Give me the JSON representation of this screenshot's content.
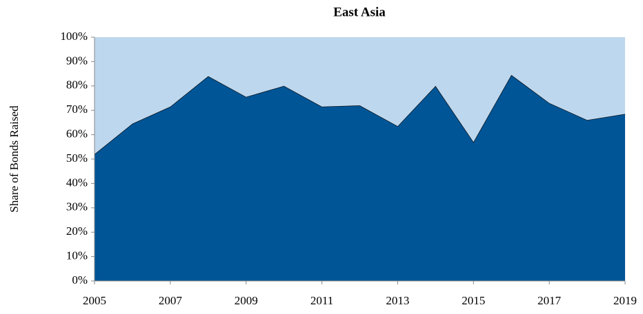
{
  "chart_data": {
    "type": "stacked_area",
    "title": "East Asia",
    "y_label": "Share of Bonds Raised",
    "x": [
      2005,
      2006,
      2007,
      2008,
      2009,
      2010,
      2011,
      2012,
      2013,
      2014,
      2015,
      2016,
      2017,
      2018,
      2019
    ],
    "series": [
      {
        "color": "#005596",
        "values": [
          52,
          64.5,
          71.5,
          84,
          75.5,
          80,
          71.5,
          72,
          63.5,
          80,
          57,
          84.5,
          73,
          66,
          68.5
        ]
      },
      {
        "color": "#bdd7ee",
        "values": [
          48,
          35.5,
          28.5,
          16,
          24.5,
          20,
          28.5,
          28,
          36.5,
          20,
          43,
          15.5,
          27,
          34,
          31.5
        ]
      }
    ],
    "xlim": [
      2005,
      2019
    ],
    "xticks": [
      2005,
      2007,
      2009,
      2011,
      2013,
      2015,
      2017,
      2019
    ],
    "ylim": [
      0,
      100
    ],
    "yticks": [
      {
        "value": 0,
        "label": "0%"
      },
      {
        "value": 10,
        "label": "10%"
      },
      {
        "value": 20,
        "label": "20%"
      },
      {
        "value": 30,
        "label": "30%"
      },
      {
        "value": 40,
        "label": "40%"
      },
      {
        "value": 50,
        "label": "50%"
      },
      {
        "value": 60,
        "label": "60%"
      },
      {
        "value": 70,
        "label": "70%"
      },
      {
        "value": 80,
        "label": "80%"
      },
      {
        "value": 90,
        "label": "90%"
      },
      {
        "value": 100,
        "label": "100%"
      }
    ]
  }
}
